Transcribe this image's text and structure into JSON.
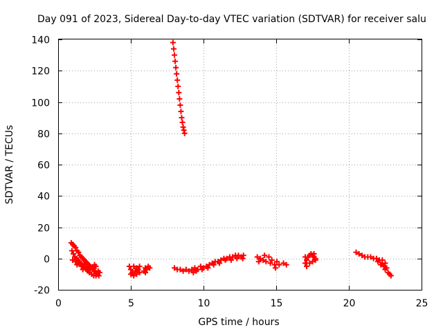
{
  "chart_data": {
    "type": "scatter",
    "title": "Day 091 of 2023, Sidereal Day-to-day VTEC variation (SDTVAR) for receiver salu",
    "xlabel": "GPS time / hours",
    "ylabel": "SDTVAR / TECUs",
    "xlim": [
      0,
      25
    ],
    "ylim": [
      -20,
      140
    ],
    "xticks": [
      0,
      5,
      10,
      15,
      20,
      25
    ],
    "yticks": [
      -20,
      0,
      20,
      40,
      60,
      80,
      100,
      120,
      140
    ],
    "grid": true,
    "marker": "+",
    "color": "#ff0000",
    "series": [
      {
        "name": "SDTVAR",
        "points": [
          [
            0.9,
            10
          ],
          [
            1.0,
            9
          ],
          [
            1.1,
            8
          ],
          [
            1.2,
            7
          ],
          [
            1.3,
            5
          ],
          [
            1.4,
            4
          ],
          [
            1.5,
            2
          ],
          [
            1.6,
            1
          ],
          [
            1.7,
            0
          ],
          [
            1.8,
            -1
          ],
          [
            1.9,
            -2
          ],
          [
            2.0,
            -3
          ],
          [
            2.1,
            -4
          ],
          [
            2.2,
            -5
          ],
          [
            2.3,
            -6
          ],
          [
            2.4,
            -7
          ],
          [
            2.5,
            -8
          ],
          [
            2.6,
            -9
          ],
          [
            2.7,
            -10
          ],
          [
            2.8,
            -11
          ],
          [
            0.95,
            5
          ],
          [
            1.05,
            3
          ],
          [
            1.15,
            1
          ],
          [
            1.25,
            0
          ],
          [
            1.35,
            -1
          ],
          [
            1.45,
            -2
          ],
          [
            1.55,
            -3
          ],
          [
            1.65,
            -4
          ],
          [
            1.75,
            -5
          ],
          [
            1.85,
            -6
          ],
          [
            1.95,
            -7
          ],
          [
            2.05,
            -8
          ],
          [
            2.15,
            -9
          ],
          [
            2.3,
            -10
          ],
          [
            2.45,
            -11
          ],
          [
            2.6,
            -11
          ],
          [
            1.0,
            -1
          ],
          [
            1.2,
            -2
          ],
          [
            1.4,
            -3
          ],
          [
            1.6,
            -5
          ],
          [
            1.8,
            -4
          ],
          [
            2.0,
            -6
          ],
          [
            2.2,
            -7
          ],
          [
            2.4,
            -6
          ],
          [
            2.6,
            -5
          ],
          [
            2.75,
            -8
          ],
          [
            2.85,
            -9
          ],
          [
            1.3,
            -4
          ],
          [
            1.7,
            -7
          ],
          [
            2.1,
            -5
          ],
          [
            2.5,
            -4
          ],
          [
            4.9,
            -5
          ],
          [
            5.0,
            -7
          ],
          [
            5.1,
            -9
          ],
          [
            5.2,
            -11
          ],
          [
            5.3,
            -8
          ],
          [
            5.4,
            -6
          ],
          [
            5.0,
            -10
          ],
          [
            5.2,
            -5
          ],
          [
            5.4,
            -10
          ],
          [
            5.5,
            -7
          ],
          [
            5.6,
            -5
          ],
          [
            5.6,
            -9
          ],
          [
            5.9,
            -8
          ],
          [
            6.0,
            -6
          ],
          [
            6.1,
            -7
          ],
          [
            6.2,
            -5
          ],
          [
            6.3,
            -6
          ],
          [
            6.0,
            -9
          ],
          [
            7.9,
            138
          ],
          [
            7.95,
            134
          ],
          [
            8.0,
            130
          ],
          [
            8.05,
            126
          ],
          [
            8.1,
            122
          ],
          [
            8.15,
            118
          ],
          [
            8.2,
            114
          ],
          [
            8.25,
            110
          ],
          [
            8.3,
            106
          ],
          [
            8.35,
            102
          ],
          [
            8.4,
            98
          ],
          [
            8.45,
            94
          ],
          [
            8.5,
            90
          ],
          [
            8.55,
            87
          ],
          [
            8.6,
            84
          ],
          [
            8.65,
            82
          ],
          [
            8.7,
            80
          ],
          [
            8.0,
            -6
          ],
          [
            8.2,
            -7
          ],
          [
            8.4,
            -7
          ],
          [
            8.6,
            -8
          ],
          [
            8.8,
            -7
          ],
          [
            9.0,
            -8
          ],
          [
            9.2,
            -7
          ],
          [
            9.4,
            -6
          ],
          [
            9.6,
            -7
          ],
          [
            9.8,
            -5
          ],
          [
            10.0,
            -6
          ],
          [
            10.2,
            -5
          ],
          [
            10.4,
            -4
          ],
          [
            10.6,
            -3
          ],
          [
            10.8,
            -2
          ],
          [
            11.0,
            -2
          ],
          [
            11.2,
            -1
          ],
          [
            11.4,
            0
          ],
          [
            11.6,
            0
          ],
          [
            11.8,
            1
          ],
          [
            12.0,
            1
          ],
          [
            12.2,
            2
          ],
          [
            12.4,
            2
          ],
          [
            12.6,
            1
          ],
          [
            12.75,
            2
          ],
          [
            9.3,
            -9
          ],
          [
            9.5,
            -8
          ],
          [
            9.9,
            -7
          ],
          [
            10.3,
            -6
          ],
          [
            10.7,
            -4
          ],
          [
            11.1,
            -3
          ],
          [
            11.5,
            -1
          ],
          [
            11.9,
            -1
          ],
          [
            12.3,
            0
          ],
          [
            12.7,
            0
          ],
          [
            13.7,
            1
          ],
          [
            13.9,
            0
          ],
          [
            14.1,
            -1
          ],
          [
            14.3,
            -2
          ],
          [
            14.5,
            1
          ],
          [
            14.7,
            -1
          ],
          [
            13.8,
            -2
          ],
          [
            14.2,
            2
          ],
          [
            14.6,
            -3
          ],
          [
            14.9,
            -4
          ],
          [
            14.95,
            -6
          ],
          [
            15.05,
            -2
          ],
          [
            15.2,
            -4
          ],
          [
            15.5,
            -3
          ],
          [
            15.7,
            -4
          ],
          [
            17.0,
            -3
          ],
          [
            17.1,
            -1
          ],
          [
            17.2,
            1
          ],
          [
            17.3,
            2
          ],
          [
            17.4,
            3
          ],
          [
            17.5,
            2
          ],
          [
            17.6,
            1
          ],
          [
            17.7,
            -1
          ],
          [
            17.1,
            -5
          ],
          [
            17.3,
            -3
          ],
          [
            17.5,
            -2
          ],
          [
            17.7,
            0
          ],
          [
            17.0,
            1
          ],
          [
            17.6,
            3
          ],
          [
            20.5,
            4
          ],
          [
            20.7,
            3
          ],
          [
            20.9,
            2
          ],
          [
            21.1,
            1
          ],
          [
            21.3,
            1
          ],
          [
            21.5,
            1
          ],
          [
            21.7,
            0
          ],
          [
            21.9,
            0
          ],
          [
            22.0,
            -2
          ],
          [
            22.1,
            -1
          ],
          [
            22.2,
            -4
          ],
          [
            22.3,
            -3
          ],
          [
            22.4,
            -5
          ],
          [
            22.5,
            -7
          ],
          [
            22.6,
            -6
          ],
          [
            22.7,
            -9
          ],
          [
            22.8,
            -10
          ],
          [
            22.9,
            -11
          ],
          [
            22.3,
            -1
          ],
          [
            22.5,
            -3
          ]
        ]
      }
    ]
  }
}
